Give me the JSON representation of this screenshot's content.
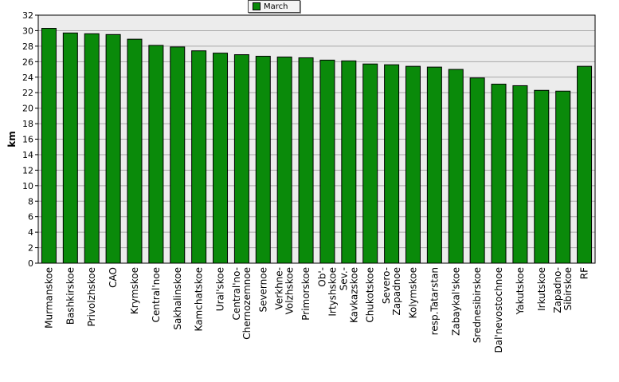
{
  "chart_data": {
    "type": "bar",
    "ylabel": "km",
    "ylim": [
      0,
      32
    ],
    "yticks": [
      0,
      2,
      4,
      6,
      8,
      10,
      12,
      14,
      16,
      18,
      20,
      22,
      24,
      26,
      28,
      30,
      32
    ],
    "grid": true,
    "legend_position": "top-center",
    "series": [
      {
        "name": "March",
        "color": "#0a8a0a"
      }
    ],
    "categories": [
      [
        "Murmanskoe"
      ],
      [
        "Bashkirskoe"
      ],
      [
        "Privolzhskoe"
      ],
      [
        "CAO"
      ],
      [
        "Krymskoe"
      ],
      [
        "Central'noe"
      ],
      [
        "Sakhalinskoe"
      ],
      [
        "Kamchatskoe"
      ],
      [
        "Ural'skoe"
      ],
      [
        "Central'no-",
        "Chernozemnoe"
      ],
      [
        "Severnoe"
      ],
      [
        "Verkhne-",
        "Volzhskoe"
      ],
      [
        "Primorskoe"
      ],
      [
        "Ob'-",
        "Irtyshskoe"
      ],
      [
        "Sev.-",
        "Kavkazskoe"
      ],
      [
        "Chukotskoe"
      ],
      [
        "Severo-",
        "Zapadnoe"
      ],
      [
        "Kolymskoe"
      ],
      [
        "resp.Tatarstan"
      ],
      [
        "Zabaykal'skoe"
      ],
      [
        "Srednesibirskoe"
      ],
      [
        "Dal'nevostochnoe"
      ],
      [
        "Yakutskoe"
      ],
      [
        "Irkutskoe"
      ],
      [
        "Zapadno-",
        "Sibirskoe"
      ],
      [
        "RF"
      ]
    ],
    "values": [
      30.3,
      29.7,
      29.6,
      29.5,
      28.9,
      28.1,
      27.9,
      27.4,
      27.1,
      26.9,
      26.7,
      26.6,
      26.5,
      26.2,
      26.1,
      25.7,
      25.6,
      25.4,
      25.3,
      25.0,
      23.9,
      23.1,
      22.9,
      22.3,
      22.2,
      25.4
    ]
  }
}
